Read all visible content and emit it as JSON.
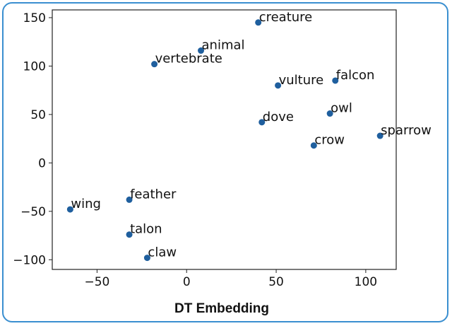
{
  "chart_data": {
    "type": "scatter",
    "title": "",
    "xlabel": "DT Embedding",
    "ylabel": "",
    "xlim": [
      -75,
      117
    ],
    "ylim": [
      -110,
      158
    ],
    "xticks": [
      -50,
      0,
      50,
      100
    ],
    "yticks": [
      -100,
      -50,
      0,
      50,
      100,
      150
    ],
    "xtick_labels": [
      "−50",
      "0",
      "50",
      "100"
    ],
    "ytick_labels": [
      "−100",
      "−50",
      "0",
      "50",
      "100",
      "150"
    ],
    "grid": false,
    "marker_color": "#1f5f9e",
    "points": [
      {
        "label": "creature",
        "x": 40,
        "y": 145
      },
      {
        "label": "animal",
        "x": 8,
        "y": 116
      },
      {
        "label": "vertebrate",
        "x": -18,
        "y": 102
      },
      {
        "label": "vulture",
        "x": 51,
        "y": 80
      },
      {
        "label": "falcon",
        "x": 83,
        "y": 85
      },
      {
        "label": "owl",
        "x": 80,
        "y": 51
      },
      {
        "label": "dove",
        "x": 42,
        "y": 42
      },
      {
        "label": "sparrow",
        "x": 108,
        "y": 28
      },
      {
        "label": "crow",
        "x": 71,
        "y": 18
      },
      {
        "label": "feather",
        "x": -32,
        "y": -38
      },
      {
        "label": "wing",
        "x": -65,
        "y": -48
      },
      {
        "label": "talon",
        "x": -32,
        "y": -74
      },
      {
        "label": "claw",
        "x": -22,
        "y": -98
      }
    ]
  },
  "colors": {
    "frame_border": "#3a8fd0",
    "axes": "#222222",
    "marker": "#1f5f9e"
  }
}
